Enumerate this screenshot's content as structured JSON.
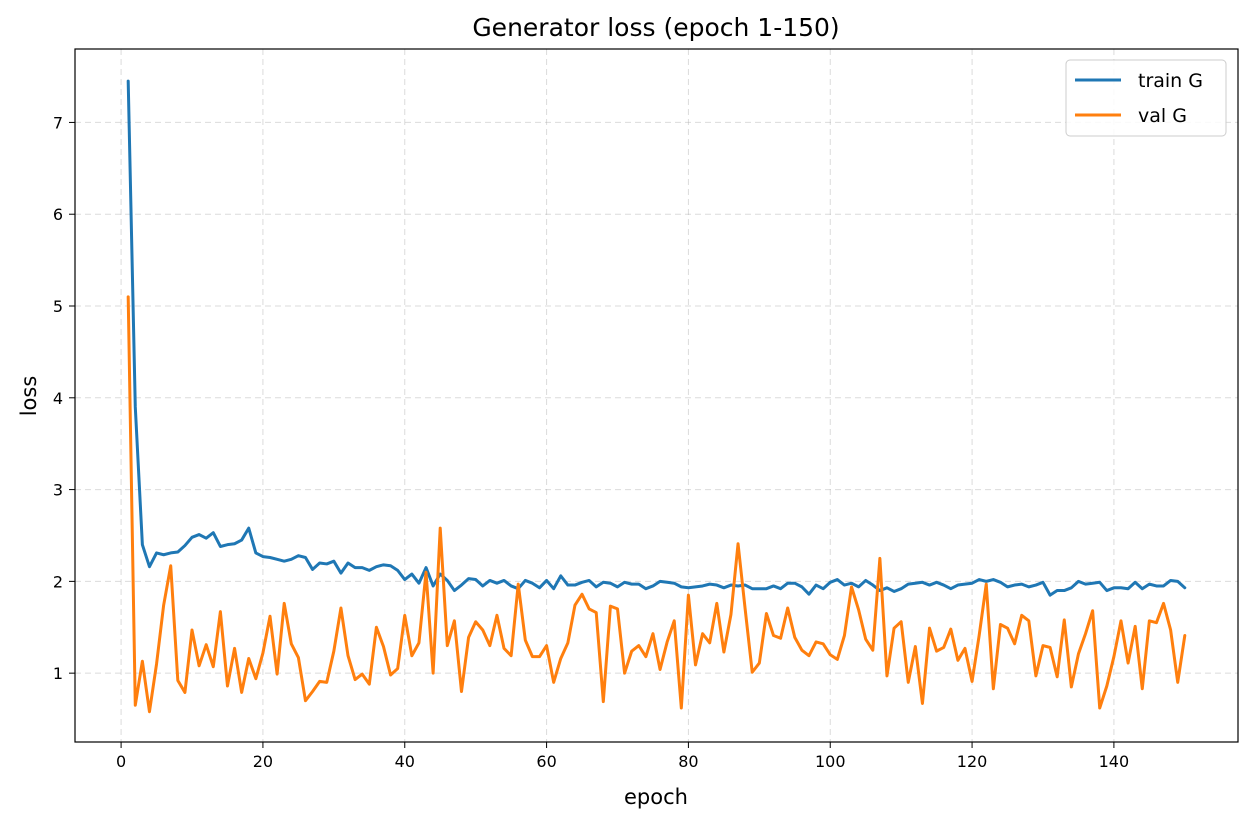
{
  "chart_data": {
    "type": "line",
    "title": "Generator loss (epoch 1-150)",
    "xlabel": "epoch",
    "ylabel": "loss",
    "xlim": [
      -6.5,
      157.5
    ],
    "ylim": [
      0.25,
      7.8
    ],
    "xticks": [
      0,
      20,
      40,
      60,
      80,
      100,
      120,
      140
    ],
    "yticks": [
      1,
      2,
      3,
      4,
      5,
      6,
      7
    ],
    "grid": true,
    "legend_position": "top-right",
    "x_start": 1,
    "series": [
      {
        "name": "train G",
        "color": "#1f77b4",
        "values": [
          7.45,
          3.9,
          2.4,
          2.16,
          2.31,
          2.29,
          2.31,
          2.32,
          2.39,
          2.48,
          2.51,
          2.47,
          2.53,
          2.38,
          2.4,
          2.41,
          2.45,
          2.58,
          2.31,
          2.27,
          2.26,
          2.24,
          2.22,
          2.24,
          2.28,
          2.26,
          2.13,
          2.2,
          2.19,
          2.22,
          2.09,
          2.2,
          2.15,
          2.15,
          2.12,
          2.16,
          2.18,
          2.17,
          2.12,
          2.02,
          2.08,
          1.98,
          2.15,
          1.95,
          2.08,
          2.01,
          1.9,
          1.96,
          2.03,
          2.02,
          1.95,
          2.01,
          1.98,
          2.01,
          1.95,
          1.92,
          2.01,
          1.98,
          1.93,
          2.01,
          1.92,
          2.06,
          1.96,
          1.96,
          1.99,
          2.01,
          1.94,
          1.99,
          1.98,
          1.94,
          1.99,
          1.97,
          1.97,
          1.92,
          1.95,
          2.0,
          1.99,
          1.98,
          1.94,
          1.93,
          1.94,
          1.95,
          1.97,
          1.96,
          1.93,
          1.96,
          1.95,
          1.96,
          1.92,
          1.92,
          1.92,
          1.95,
          1.92,
          1.98,
          1.98,
          1.94,
          1.86,
          1.96,
          1.92,
          1.99,
          2.02,
          1.96,
          1.98,
          1.94,
          2.01,
          1.96,
          1.9,
          1.93,
          1.89,
          1.92,
          1.97,
          1.98,
          1.99,
          1.96,
          1.99,
          1.96,
          1.92,
          1.96,
          1.97,
          1.98,
          2.02,
          2.0,
          2.02,
          1.99,
          1.94,
          1.96,
          1.97,
          1.94,
          1.96,
          1.99,
          1.85,
          1.9,
          1.9,
          1.93,
          2.0,
          1.97,
          1.98,
          1.99,
          1.9,
          1.93,
          1.93,
          1.92,
          1.99,
          1.92,
          1.97,
          1.95,
          1.95,
          2.01,
          2.0,
          1.93
        ]
      },
      {
        "name": "val G",
        "color": "#ff7f0e",
        "values": [
          5.1,
          0.65,
          1.13,
          0.58,
          1.1,
          1.74,
          2.17,
          0.92,
          0.79,
          1.47,
          1.08,
          1.31,
          1.07,
          1.67,
          0.86,
          1.27,
          0.79,
          1.16,
          0.94,
          1.22,
          1.62,
          0.99,
          1.76,
          1.32,
          1.17,
          0.7,
          0.8,
          0.91,
          0.9,
          1.24,
          1.71,
          1.19,
          0.93,
          0.99,
          0.88,
          1.5,
          1.29,
          0.98,
          1.05,
          1.63,
          1.19,
          1.33,
          2.1,
          1.0,
          2.58,
          1.3,
          1.57,
          0.8,
          1.39,
          1.56,
          1.47,
          1.3,
          1.63,
          1.27,
          1.19,
          1.97,
          1.36,
          1.18,
          1.18,
          1.3,
          0.9,
          1.16,
          1.33,
          1.74,
          1.86,
          1.7,
          1.66,
          0.69,
          1.73,
          1.7,
          1.0,
          1.24,
          1.3,
          1.18,
          1.43,
          1.04,
          1.34,
          1.57,
          0.62,
          1.85,
          1.09,
          1.43,
          1.33,
          1.76,
          1.23,
          1.64,
          2.41,
          1.7,
          1.01,
          1.11,
          1.65,
          1.41,
          1.38,
          1.71,
          1.39,
          1.25,
          1.19,
          1.34,
          1.32,
          1.2,
          1.15,
          1.41,
          1.94,
          1.69,
          1.37,
          1.25,
          2.25,
          0.97,
          1.49,
          1.56,
          0.9,
          1.29,
          0.67,
          1.49,
          1.24,
          1.28,
          1.48,
          1.14,
          1.27,
          0.91,
          1.41,
          1.97,
          0.83,
          1.53,
          1.49,
          1.32,
          1.63,
          1.57,
          0.97,
          1.3,
          1.28,
          0.96,
          1.58,
          0.85,
          1.21,
          1.43,
          1.68,
          0.62,
          0.86,
          1.18,
          1.57,
          1.11,
          1.51,
          0.83,
          1.57,
          1.55,
          1.76,
          1.47,
          0.9,
          1.41
        ]
      }
    ]
  }
}
